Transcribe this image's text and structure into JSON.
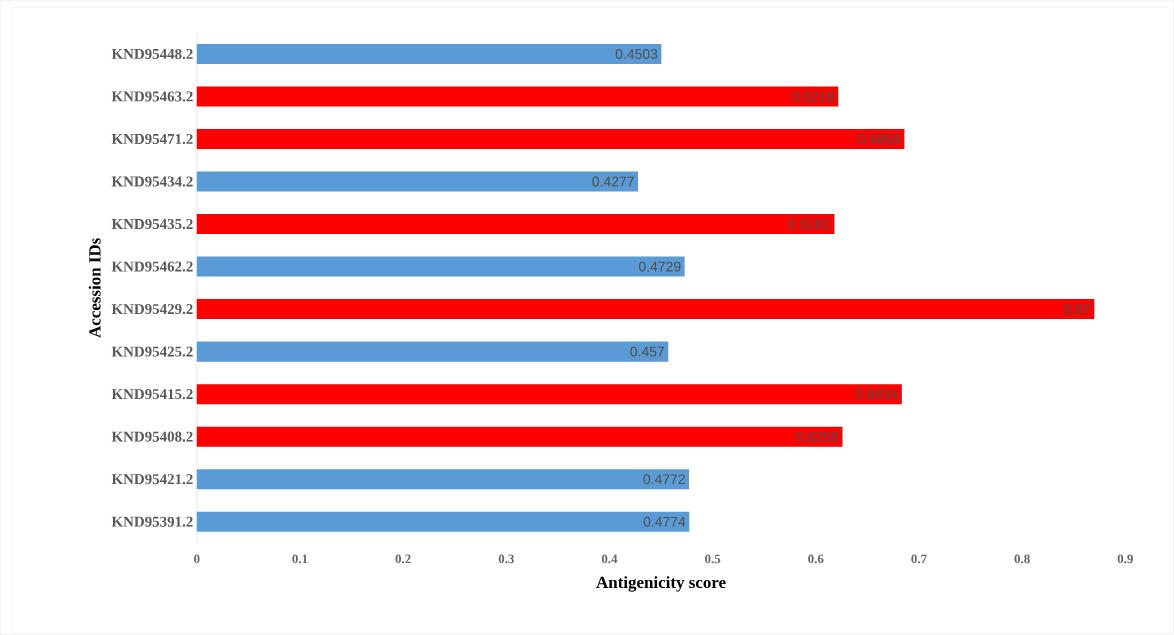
{
  "chart_data": {
    "type": "bar",
    "orientation": "horizontal",
    "xlabel": "Antigenicity score",
    "ylabel": "Accession IDs",
    "categories": [
      "KND95448.2",
      "KND95463.2",
      "KND95471.2",
      "KND95434.2",
      "KND95435.2",
      "KND95462.2",
      "KND95429.2",
      "KND95425.2",
      "KND95415.2",
      "KND95408.2",
      "KND95421.2",
      "KND95391.2"
    ],
    "values": [
      0.4503,
      0.6218,
      0.6859,
      0.4277,
      0.6181,
      0.4729,
      0.87,
      0.457,
      0.6834,
      0.6259,
      0.4772,
      0.4774
    ],
    "colors": [
      "#5b9bd5",
      "#ff0000",
      "#ff0000",
      "#5b9bd5",
      "#ff0000",
      "#5b9bd5",
      "#ff0000",
      "#5b9bd5",
      "#ff0000",
      "#ff0000",
      "#5b9bd5",
      "#5b9bd5"
    ],
    "xlim": [
      0,
      0.9
    ],
    "xticks": [
      0,
      0.1,
      0.2,
      0.3,
      0.4,
      0.5,
      0.6,
      0.7,
      0.8,
      0.9
    ],
    "data_labels": true,
    "grid": false
  }
}
